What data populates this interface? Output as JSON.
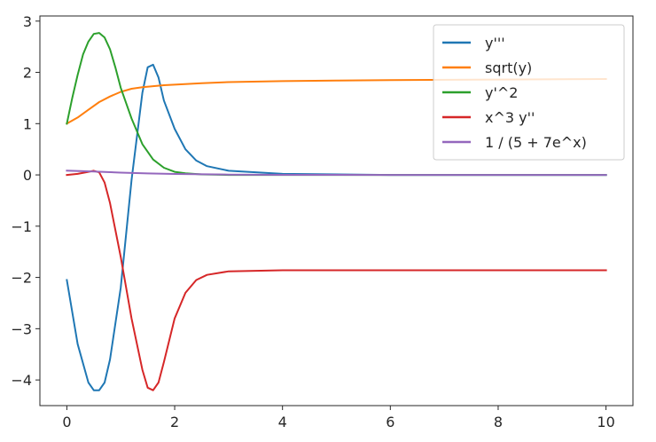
{
  "chart_data": {
    "type": "line",
    "title": "",
    "xlabel": "",
    "ylabel": "",
    "xlim": [
      -0.5,
      10.5
    ],
    "ylim": [
      -4.5,
      3.1
    ],
    "xticks": [
      0,
      2,
      4,
      6,
      8,
      10
    ],
    "xtick_labels": [
      "0",
      "2",
      "4",
      "6",
      "8",
      "10"
    ],
    "yticks": [
      -4,
      -3,
      -2,
      -1,
      0,
      1,
      2,
      3
    ],
    "ytick_labels": [
      "−4",
      "−3",
      "−2",
      "−1",
      "0",
      "1",
      "2",
      "3"
    ],
    "grid": false,
    "legend_position": "top-right",
    "series": [
      {
        "name": "y'''",
        "color": "#1f77b4",
        "x": [
          0,
          0.2,
          0.4,
          0.5,
          0.6,
          0.7,
          0.8,
          1.0,
          1.2,
          1.4,
          1.5,
          1.6,
          1.7,
          1.8,
          2.0,
          2.2,
          2.4,
          2.6,
          3.0,
          4.0,
          6.0,
          8.0,
          10.0
        ],
        "y": [
          -2.05,
          -3.3,
          -4.05,
          -4.2,
          -4.2,
          -4.05,
          -3.6,
          -2.2,
          -0.1,
          1.6,
          2.1,
          2.15,
          1.9,
          1.45,
          0.9,
          0.5,
          0.28,
          0.17,
          0.08,
          0.02,
          0.0,
          0.0,
          0.0
        ]
      },
      {
        "name": "sqrt(y)",
        "color": "#ff7f0e",
        "x": [
          0,
          0.2,
          0.4,
          0.6,
          0.8,
          1.0,
          1.2,
          1.4,
          1.6,
          1.8,
          2.0,
          2.5,
          3.0,
          4.0,
          5.0,
          6.0,
          8.0,
          10.0
        ],
        "y": [
          1.0,
          1.12,
          1.27,
          1.42,
          1.53,
          1.62,
          1.68,
          1.71,
          1.73,
          1.75,
          1.76,
          1.79,
          1.81,
          1.83,
          1.84,
          1.85,
          1.86,
          1.87
        ]
      },
      {
        "name": "y'^2",
        "color": "#2ca02c",
        "x": [
          0,
          0.1,
          0.2,
          0.3,
          0.4,
          0.5,
          0.6,
          0.7,
          0.8,
          0.9,
          1.0,
          1.2,
          1.4,
          1.6,
          1.8,
          2.0,
          2.2,
          2.5,
          3.0,
          4.0,
          6.0,
          8.0,
          10.0
        ],
        "y": [
          1.0,
          1.5,
          1.95,
          2.35,
          2.6,
          2.75,
          2.77,
          2.68,
          2.45,
          2.1,
          1.7,
          1.1,
          0.6,
          0.3,
          0.14,
          0.06,
          0.03,
          0.01,
          0.0,
          0.0,
          0.0,
          0.0,
          0.0
        ]
      },
      {
        "name": "x^3 y''",
        "color": "#d62728",
        "x": [
          0,
          0.2,
          0.4,
          0.5,
          0.6,
          0.7,
          0.8,
          1.0,
          1.2,
          1.4,
          1.5,
          1.6,
          1.7,
          1.8,
          2.0,
          2.2,
          2.4,
          2.6,
          3.0,
          4.0,
          6.0,
          8.0,
          10.0
        ],
        "y": [
          0.0,
          0.02,
          0.06,
          0.08,
          0.05,
          -0.15,
          -0.55,
          -1.6,
          -2.8,
          -3.8,
          -4.15,
          -4.2,
          -4.05,
          -3.65,
          -2.8,
          -2.3,
          -2.05,
          -1.95,
          -1.88,
          -1.86,
          -1.86,
          -1.86,
          -1.86
        ]
      },
      {
        "name": "1 / (5 + 7e^x)",
        "color": "#9467bd",
        "x": [
          0,
          0.5,
          1.0,
          1.5,
          2.0,
          3.0,
          4.0,
          6.0,
          8.0,
          10.0
        ],
        "y": [
          0.083,
          0.066,
          0.045,
          0.029,
          0.018,
          0.007,
          0.002,
          0.0,
          0.0,
          0.0
        ]
      }
    ]
  }
}
